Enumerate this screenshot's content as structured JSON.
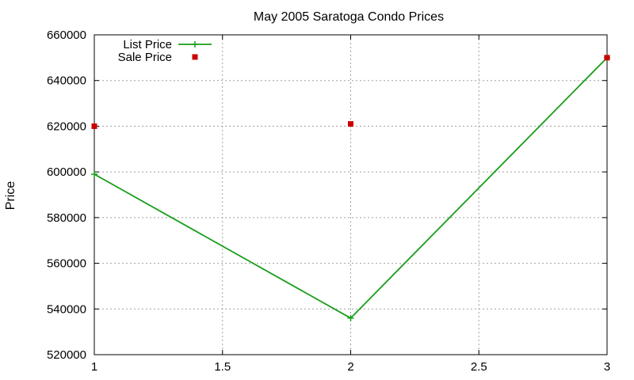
{
  "chart_data": {
    "type": "line",
    "title": "May 2005 Saratoga Condo Prices",
    "xlabel": "",
    "ylabel": "Price",
    "xlim": [
      1,
      3
    ],
    "ylim": [
      520000,
      660000
    ],
    "x_ticks": [
      1,
      1.5,
      2,
      2.5,
      3
    ],
    "x_tick_labels": [
      "1",
      "1.5",
      "2",
      "2.5",
      "3"
    ],
    "y_ticks": [
      520000,
      540000,
      560000,
      580000,
      600000,
      620000,
      640000,
      660000
    ],
    "y_tick_labels": [
      "520000",
      "540000",
      "560000",
      "580000",
      "600000",
      "620000",
      "640000",
      "660000"
    ],
    "grid": true,
    "legend_position": "top-left",
    "series": [
      {
        "name": "List Price",
        "style": "line-with-plus-markers",
        "color": "#1a9e1a",
        "x": [
          1,
          2,
          3
        ],
        "y": [
          599000,
          536000,
          650000
        ]
      },
      {
        "name": "Sale Price",
        "style": "square-markers",
        "color": "#cc0000",
        "x": [
          1,
          2,
          3
        ],
        "y": [
          620000,
          621000,
          650000
        ]
      }
    ]
  }
}
